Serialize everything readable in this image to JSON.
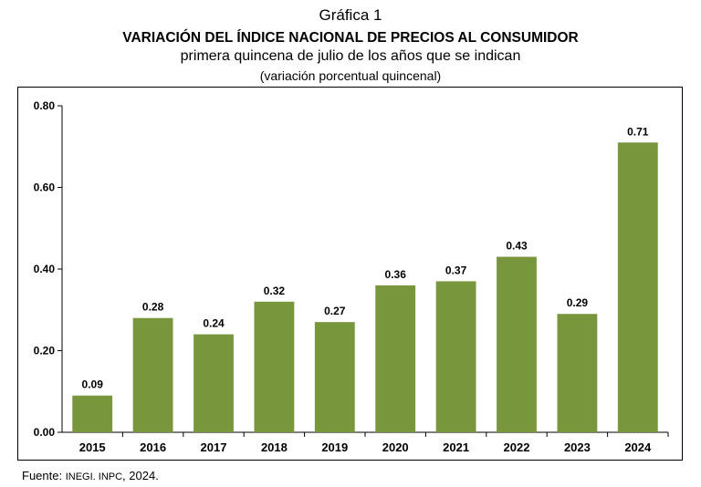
{
  "header": {
    "label": "Gráfica 1",
    "title": "VARIACIÓN DEL ÍNDICE NACIONAL DE PRECIOS AL CONSUMIDOR",
    "subtitle": "primera quincena de julio de los años que se indican",
    "units": "(variación porcentual quincenal)"
  },
  "source": {
    "prefix": "Fuente: ",
    "org": "INEGI. INPC",
    "suffix": ", 2024."
  },
  "colors": {
    "bar": "#78963c",
    "axis": "#000000",
    "text": "#000000"
  },
  "chart_data": {
    "type": "bar",
    "categories": [
      "2015",
      "2016",
      "2017",
      "2018",
      "2019",
      "2020",
      "2021",
      "2022",
      "2023",
      "2024"
    ],
    "values": [
      0.09,
      0.28,
      0.24,
      0.32,
      0.27,
      0.36,
      0.37,
      0.43,
      0.29,
      0.71
    ],
    "value_labels": [
      "0.09",
      "0.28",
      "0.24",
      "0.32",
      "0.27",
      "0.36",
      "0.37",
      "0.43",
      "0.29",
      "0.71"
    ],
    "yticks": [
      0,
      0.2,
      0.4,
      0.6,
      0.8
    ],
    "ytick_labels": [
      "0.00",
      "0.20",
      "0.40",
      "0.60",
      "0.80"
    ],
    "ylim": [
      0,
      0.8
    ],
    "grid": false,
    "legend": "none"
  }
}
